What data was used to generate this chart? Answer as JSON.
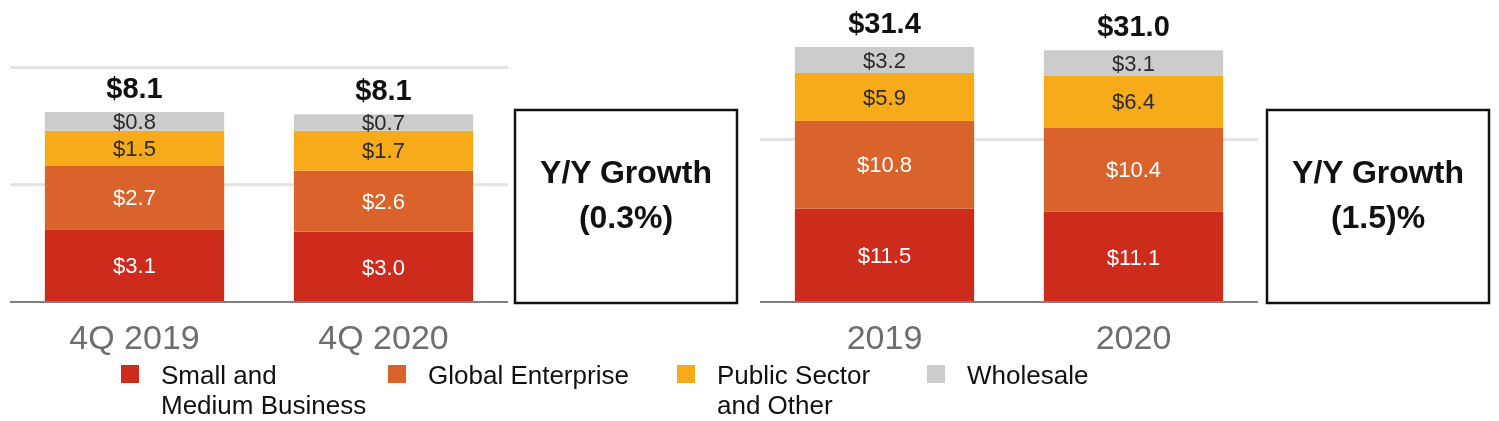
{
  "chart_data": [
    {
      "type": "bar",
      "stacked": true,
      "categories": [
        "4Q 2019",
        "4Q 2020"
      ],
      "series": [
        {
          "name": "Small and Medium Business",
          "color": "#cd2b1c",
          "values": [
            3.1,
            3.0
          ],
          "value_labels": [
            "$3.1",
            "$3.0"
          ]
        },
        {
          "name": "Global Enterprise",
          "color": "#d9632b",
          "values": [
            2.7,
            2.6
          ],
          "value_labels": [
            "$2.7",
            "$2.6"
          ]
        },
        {
          "name": "Public Sector and Other",
          "color": "#f8ab1a",
          "values": [
            1.5,
            1.7
          ],
          "value_labels": [
            "$1.5",
            "$1.7"
          ]
        },
        {
          "name": "Wholesale",
          "color": "#cccccc",
          "values": [
            0.8,
            0.7
          ],
          "value_labels": [
            "$0.8",
            "$0.7"
          ]
        }
      ],
      "totals": [
        "$8.1",
        "$8.1"
      ],
      "ref_lines": [
        {
          "axis": "y",
          "value": 5,
          "color": "#e3e3e3"
        },
        {
          "axis": "y",
          "value": 10,
          "color": "#e3e3e3"
        }
      ],
      "tick_labels": "x",
      "legend": "bottom"
    },
    {
      "type": "other",
      "title": "Y/Y Growth",
      "annotations": [
        "(0.3%)"
      ]
    },
    {
      "type": "bar",
      "stacked": true,
      "categories": [
        "2019",
        "2020"
      ],
      "series": [
        {
          "color": "#cd2b1c",
          "values": [
            11.5,
            11.1
          ],
          "value_labels": [
            "$11.5",
            "$11.1"
          ]
        },
        {
          "color": "#d9632b",
          "values": [
            10.8,
            10.4
          ],
          "value_labels": [
            "$10.8",
            "$10.4"
          ]
        },
        {
          "color": "#f8ab1a",
          "values": [
            5.9,
            6.4
          ],
          "value_labels": [
            "$5.9",
            "$6.4"
          ]
        },
        {
          "color": "#cccccc",
          "values": [
            3.2,
            3.1
          ],
          "value_labels": [
            "$3.2",
            "$3.1"
          ]
        }
      ],
      "totals": [
        "$31.4",
        "$31.0"
      ],
      "ref_lines": [
        {
          "axis": "y",
          "value": 20,
          "color": "#e3e3e3"
        }
      ],
      "tick_labels": "x"
    },
    {
      "type": "other",
      "title": "Y/Y Growth",
      "annotations": [
        "(1.5)%"
      ]
    }
  ]
}
